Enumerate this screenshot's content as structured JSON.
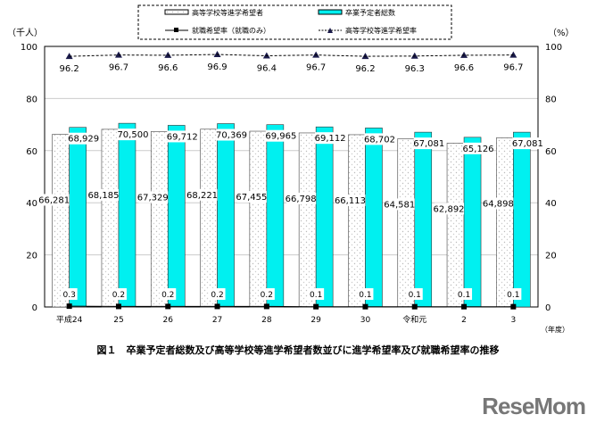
{
  "chart_data": {
    "type": "bar",
    "categories": [
      "平成24",
      "25",
      "26",
      "27",
      "28",
      "29",
      "30",
      "令和元",
      "2",
      "3"
    ],
    "series": [
      {
        "name": "高等学校等進学希望者",
        "kind": "bar",
        "axis": "left",
        "values": [
          66281,
          68185,
          67329,
          68221,
          67455,
          66798,
          66113,
          64581,
          62892,
          64898
        ],
        "labels": [
          "66,281",
          "68,185",
          "67,329",
          "68,221",
          "67,455",
          "66,798",
          "66,113",
          "64,581",
          "62,892",
          "64,898"
        ]
      },
      {
        "name": "卒業予定者総数",
        "kind": "bar",
        "axis": "left",
        "values": [
          68929,
          70500,
          69712,
          70369,
          69965,
          69112,
          68702,
          67081,
          65126,
          67081
        ],
        "labels": [
          "68,929",
          "70,500",
          "69,712",
          "70,369",
          "69,965",
          "69,112",
          "68,702",
          "67,081",
          "65,126",
          "67,081"
        ]
      },
      {
        "name": "就職希望率（就職のみ）",
        "kind": "line",
        "axis": "right",
        "values": [
          0.3,
          0.2,
          0.2,
          0.2,
          0.2,
          0.1,
          0.1,
          0.1,
          0.1,
          0.1
        ]
      },
      {
        "name": "高等学校等進学希望率",
        "kind": "line",
        "axis": "right",
        "values": [
          96.2,
          96.7,
          96.6,
          96.9,
          96.4,
          96.7,
          96.2,
          96.3,
          96.6,
          96.7
        ]
      }
    ],
    "ylabel_left": "（千人）",
    "ylabel_right": "（%）",
    "xlabel": "（年度）",
    "ylim": [
      0,
      100
    ],
    "yticks": [
      0,
      20,
      40,
      60,
      80,
      100
    ],
    "grid": true,
    "legend": "top-center",
    "colors": {
      "bar1": "#ffffff",
      "bar2": "#00f0f0",
      "line": "#1a1a4a"
    }
  },
  "caption": "図１　卒業予定者総数及び高等学校等進学希望者数並びに進学希望率及び就職希望率の推移",
  "logo": "ReseMom"
}
